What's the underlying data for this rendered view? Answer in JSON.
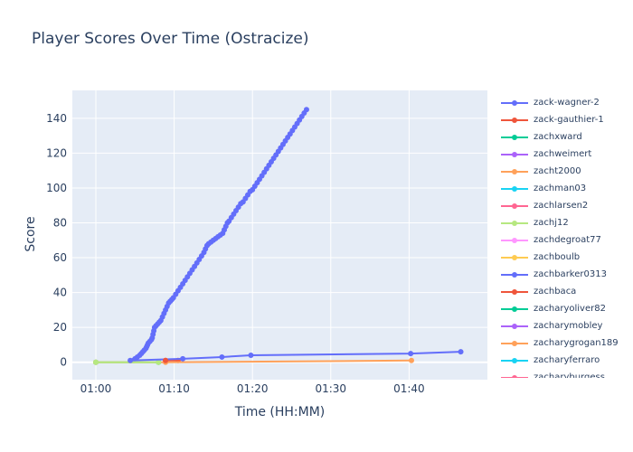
{
  "chart_data": {
    "type": "line",
    "title": "Player Scores Over Time (Ostracize)",
    "xlabel": "Time (HH:MM)",
    "ylabel": "Score",
    "x_ticks": [
      "01:00",
      "01:10",
      "01:20",
      "01:30",
      "01:40"
    ],
    "x_tick_minutes": [
      0,
      10,
      20,
      30,
      40
    ],
    "y_ticks": [
      0,
      20,
      40,
      60,
      80,
      100,
      120,
      140
    ],
    "xlim_minutes": [
      -3,
      50
    ],
    "ylim": [
      -10,
      156
    ],
    "grid": true,
    "legend_position": "right",
    "series": [
      {
        "name": "zack-wagner-2",
        "color": "#636efa",
        "x": [
          4.8,
          5.0,
          5.3,
          5.6,
          5.8,
          6.0,
          6.2,
          6.4,
          6.5,
          6.6,
          6.7,
          6.9,
          7.1,
          7.2,
          7.3,
          7.4,
          7.5,
          7.7,
          7.9,
          8.1,
          8.3,
          8.5,
          8.7,
          8.9,
          9.1,
          9.3,
          9.5,
          9.7,
          9.9,
          10.2,
          10.5,
          10.8,
          11.1,
          11.4,
          11.7,
          12.0,
          12.3,
          12.6,
          12.9,
          13.2,
          13.5,
          13.8,
          14.0,
          14.2,
          14.4,
          14.7,
          15.0,
          15.3,
          15.6,
          15.9,
          16.2,
          16.4,
          16.6,
          16.8,
          17.0,
          17.3,
          17.6,
          17.9,
          18.2,
          18.5,
          18.8,
          19.1,
          19.4,
          19.7,
          20.0,
          20.3,
          20.6,
          20.9,
          21.2,
          21.5,
          21.8,
          22.1,
          22.4,
          22.7,
          23.0,
          23.3,
          23.6,
          23.9,
          24.2,
          24.5,
          24.8,
          25.1,
          25.4,
          25.7,
          26.0,
          26.3,
          26.6,
          26.9
        ],
        "y": [
          1,
          2,
          3,
          4,
          5,
          6,
          7,
          8,
          9,
          10,
          11,
          12,
          13,
          14,
          16,
          18,
          20,
          21,
          22,
          23,
          24,
          26,
          28,
          30,
          32,
          34,
          35,
          36,
          37,
          39,
          41,
          43,
          45,
          47,
          49,
          51,
          53,
          55,
          57,
          59,
          61,
          63,
          65,
          67,
          68,
          69,
          70,
          71,
          72,
          73,
          74,
          76,
          78,
          80,
          81,
          83,
          85,
          87,
          89,
          91,
          92,
          94,
          96,
          98,
          99,
          101,
          103,
          105,
          107,
          109,
          111,
          113,
          115,
          117,
          119,
          121,
          123,
          125,
          127,
          129,
          131,
          133,
          135,
          137,
          139,
          141,
          143,
          145
        ]
      },
      {
        "name": "zack-gauthier-1",
        "color": "#ef553b",
        "x": [
          8.9,
          10.5
        ],
        "y": [
          1,
          1
        ]
      },
      {
        "name": "zachxward",
        "color": "#00cc96",
        "x": [
          0,
          8.0
        ],
        "y": [
          0,
          0
        ]
      },
      {
        "name": "zachweimert",
        "color": "#ab63fa",
        "x": [],
        "y": []
      },
      {
        "name": "zacht2000",
        "color": "#ffa15a",
        "x": [
          0,
          8.9,
          40.3
        ],
        "y": [
          0,
          0,
          1
        ]
      },
      {
        "name": "zachman03",
        "color": "#19d3f3",
        "x": [],
        "y": []
      },
      {
        "name": "zachlarsen2",
        "color": "#ff6692",
        "x": [],
        "y": []
      },
      {
        "name": "zachj12",
        "color": "#b6e880",
        "x": [
          0,
          8.0
        ],
        "y": [
          0,
          0
        ]
      },
      {
        "name": "zachdegroat77",
        "color": "#ff97ff",
        "x": [],
        "y": []
      },
      {
        "name": "zachboulb",
        "color": "#fecb52",
        "x": [],
        "y": []
      },
      {
        "name": "zachbarker0313",
        "color": "#636efa",
        "x": [
          4.4,
          11.1,
          16.1,
          19.8,
          40.2,
          46.6
        ],
        "y": [
          1,
          2,
          3,
          4,
          5,
          6
        ]
      },
      {
        "name": "zachbaca",
        "color": "#ef553b",
        "x": [
          8.9
        ],
        "y": [
          1
        ]
      },
      {
        "name": "zacharyoliver82",
        "color": "#00cc96",
        "x": [],
        "y": []
      },
      {
        "name": "zacharymobley",
        "color": "#ab63fa",
        "x": [],
        "y": []
      },
      {
        "name": "zacharygrogan189",
        "color": "#ffa15a",
        "x": [],
        "y": []
      },
      {
        "name": "zacharyferraro",
        "color": "#19d3f3",
        "x": [],
        "y": []
      },
      {
        "name": "zacharyburgess",
        "color": "#ff6692",
        "x": [],
        "y": []
      }
    ]
  }
}
